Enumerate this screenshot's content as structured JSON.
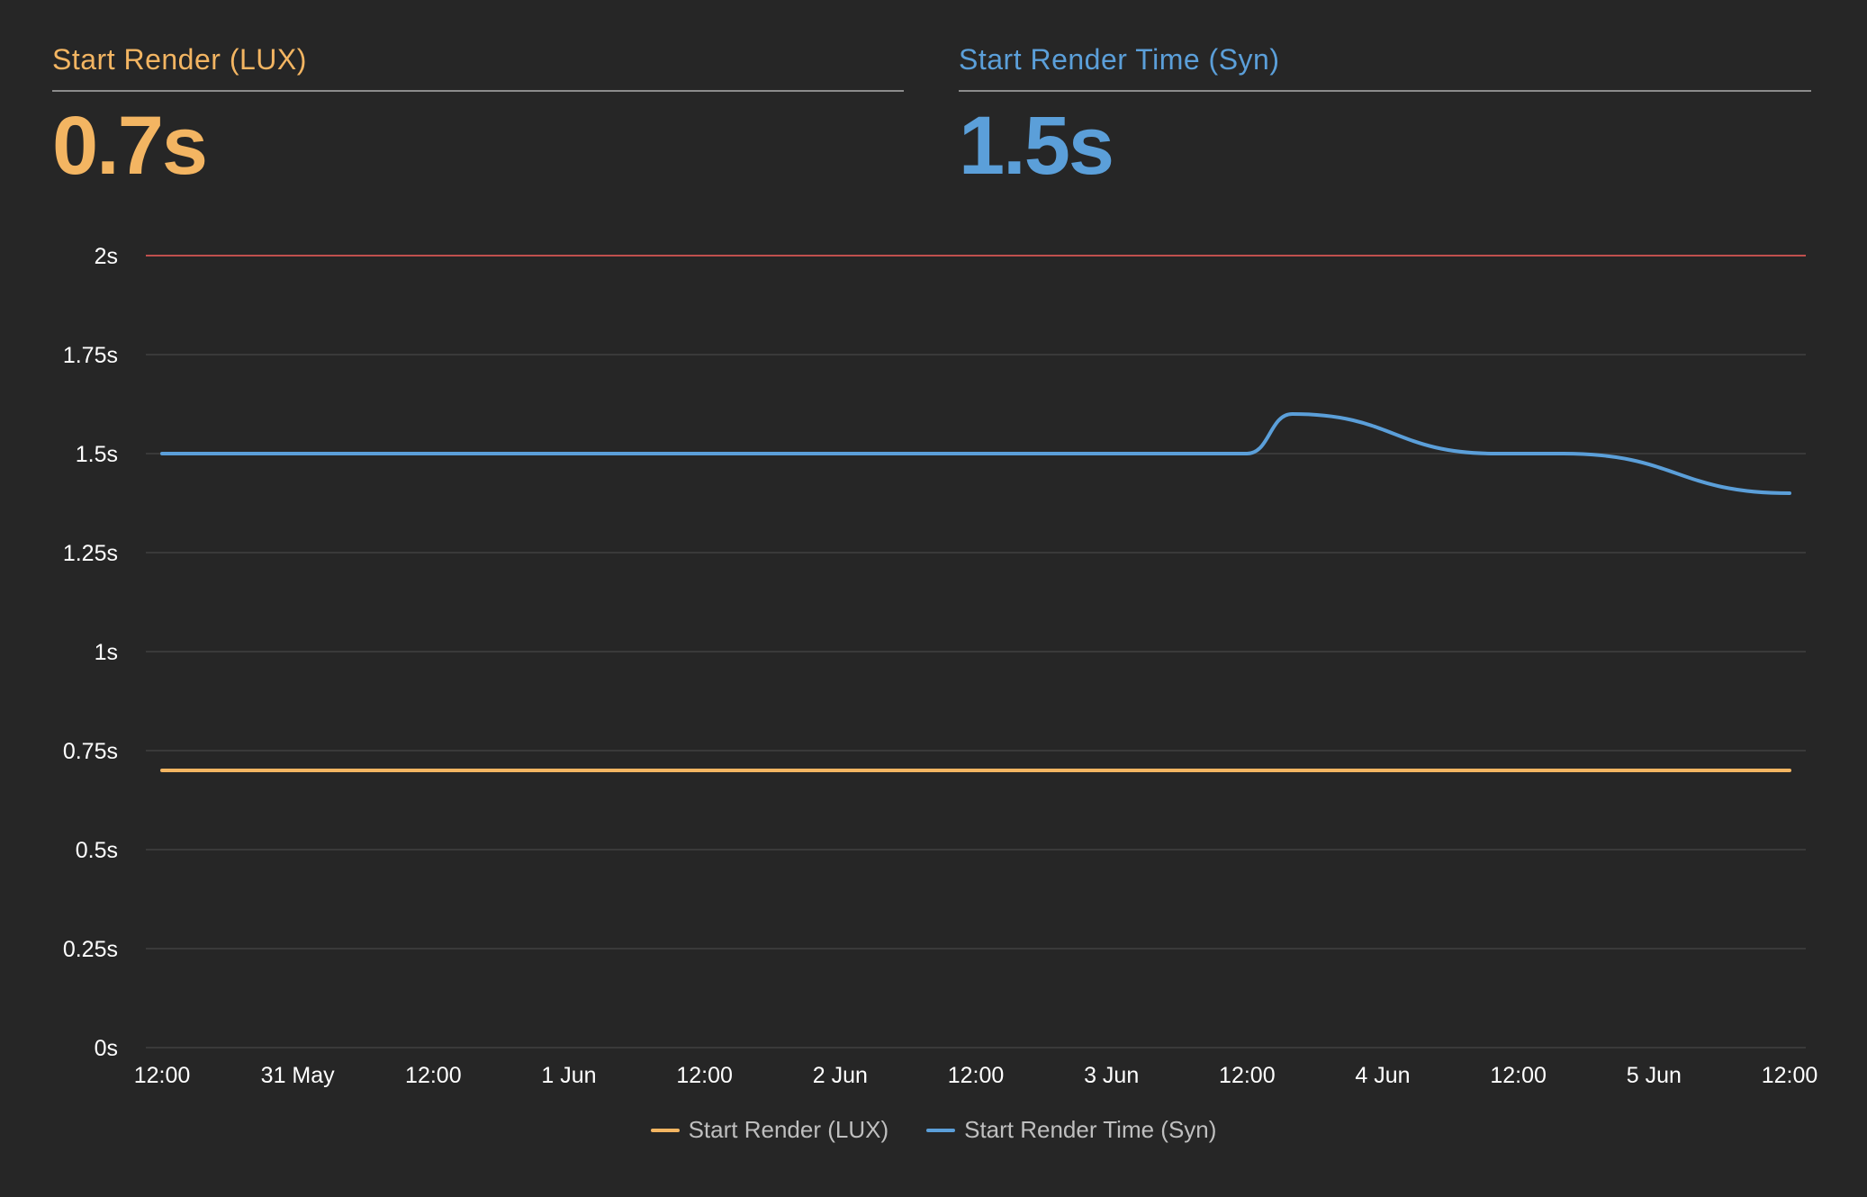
{
  "metrics": [
    {
      "label": "Start Render (LUX)",
      "value": "0.7s",
      "color": "#f3b562"
    },
    {
      "label": "Start Render Time (Syn)",
      "value": "1.5s",
      "color": "#5b9fd9"
    }
  ],
  "colors": {
    "background": "#262626",
    "grid": "#3a3a3a",
    "threshold": "#c0504d",
    "divider": "#8c8c8c"
  },
  "chart_data": {
    "type": "line",
    "y_ticks": [
      "0s",
      "0.25s",
      "0.5s",
      "0.75s",
      "1s",
      "1.25s",
      "1.5s",
      "1.75s",
      "2s"
    ],
    "y_tick_values": [
      0,
      0.25,
      0.5,
      0.75,
      1,
      1.25,
      1.5,
      1.75,
      2
    ],
    "ylim": [
      0,
      2
    ],
    "x_ticks": [
      "12:00",
      "31 May",
      "12:00",
      "1 Jun",
      "12:00",
      "2 Jun",
      "12:00",
      "3 Jun",
      "12:00",
      "4 Jun",
      "12:00",
      "5 Jun",
      "12:00"
    ],
    "x_tick_values": [
      "2023-05-30T12:00",
      "2023-05-31T00:00",
      "2023-05-31T12:00",
      "2023-06-01T00:00",
      "2023-06-01T12:00",
      "2023-06-02T00:00",
      "2023-06-02T12:00",
      "2023-06-03T00:00",
      "2023-06-03T12:00",
      "2023-06-04T00:00",
      "2023-06-04T12:00",
      "2023-06-05T00:00",
      "2023-06-05T12:00"
    ],
    "xlim": [
      "2023-05-30T12:00",
      "2023-06-05T12:00"
    ],
    "threshold": {
      "value": 2,
      "color": "#c0504d"
    },
    "grid": true,
    "legend": "bottom-center",
    "series": [
      {
        "name": "Start Render (LUX)",
        "color": "#f3b562",
        "points": [
          [
            "2023-05-30T12:00",
            0.7
          ],
          [
            "2023-06-05T12:00",
            0.7
          ]
        ]
      },
      {
        "name": "Start Render Time (Syn)",
        "color": "#5b9fd9",
        "points": [
          [
            "2023-05-30T12:00",
            1.5
          ],
          [
            "2023-06-03T12:00",
            1.5
          ],
          [
            "2023-06-03T16:00",
            1.6
          ],
          [
            "2023-06-04T10:00",
            1.5
          ],
          [
            "2023-06-04T16:00",
            1.5
          ],
          [
            "2023-06-05T12:00",
            1.4
          ]
        ]
      }
    ]
  }
}
